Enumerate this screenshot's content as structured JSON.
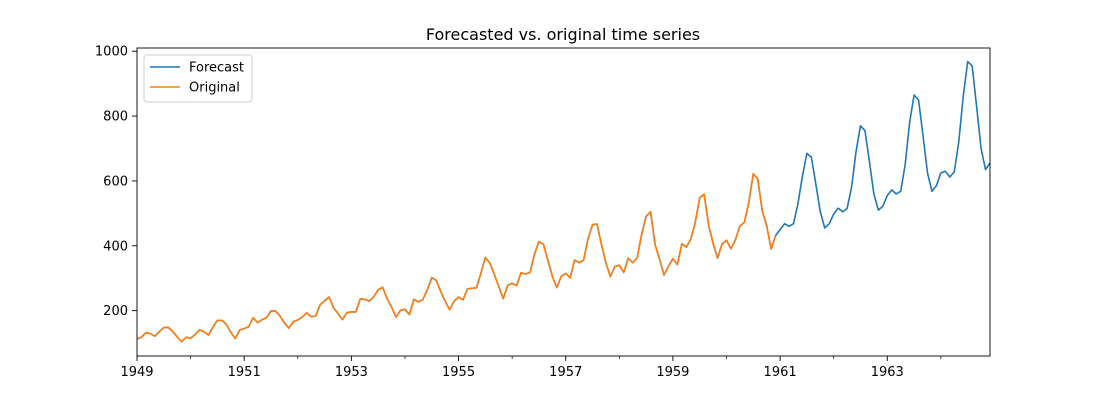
{
  "chart_data": {
    "type": "line",
    "title": "Forecasted vs. original time series",
    "xlabel": "",
    "ylabel": "",
    "x_axis": {
      "type": "date",
      "min": "1949-01",
      "max": "1964-12",
      "major_ticks": [
        "1949",
        "1951",
        "1953",
        "1955",
        "1957",
        "1959",
        "1961",
        "1963"
      ],
      "minor_ticks": [
        "1950",
        "1952",
        "1954",
        "1956",
        "1958",
        "1960",
        "1962",
        "1964"
      ]
    },
    "y_axis": {
      "min": 60,
      "max": 1010,
      "ticks": [
        200,
        400,
        600,
        800,
        1000
      ]
    },
    "grid": false,
    "legend": {
      "position": "upper-left"
    },
    "x_original": {
      "start": "1949-01",
      "frequency": "monthly",
      "end": "1960-12"
    },
    "x_forecast": {
      "start": "1949-01",
      "frequency": "monthly",
      "end": "1964-12"
    },
    "series": [
      {
        "name": "Forecast",
        "color": "#1f77b4",
        "values": [
          112,
          118,
          132,
          129,
          121,
          135,
          148,
          148,
          136,
          119,
          104,
          118,
          115,
          126,
          141,
          135,
          125,
          149,
          170,
          170,
          158,
          133,
          114,
          140,
          145,
          150,
          178,
          163,
          172,
          178,
          199,
          199,
          184,
          162,
          146,
          166,
          171,
          180,
          193,
          181,
          183,
          218,
          230,
          242,
          209,
          191,
          172,
          194,
          196,
          196,
          236,
          235,
          229,
          243,
          264,
          272,
          237,
          211,
          180,
          201,
          204,
          188,
          235,
          227,
          234,
          264,
          302,
          293,
          259,
          229,
          203,
          229,
          242,
          233,
          267,
          269,
          270,
          315,
          364,
          347,
          312,
          274,
          237,
          278,
          284,
          277,
          317,
          313,
          318,
          374,
          413,
          405,
          355,
          306,
          271,
          306,
          315,
          301,
          356,
          348,
          355,
          422,
          465,
          467,
          404,
          347,
          305,
          336,
          340,
          318,
          362,
          348,
          363,
          435,
          491,
          505,
          404,
          359,
          310,
          337,
          360,
          342,
          406,
          396,
          420,
          472,
          548,
          559,
          463,
          407,
          362,
          405,
          417,
          391,
          419,
          461,
          472,
          535,
          622,
          606,
          508,
          461,
          390,
          432,
          450,
          468,
          460,
          468,
          530,
          615,
          685,
          673,
          590,
          505,
          455,
          468,
          498,
          516,
          505,
          515,
          580,
          690,
          770,
          755,
          660,
          560,
          510,
          522,
          555,
          572,
          560,
          568,
          650,
          780,
          865,
          850,
          740,
          625,
          568,
          585,
          625,
          630,
          612,
          628,
          720,
          860,
          968,
          955,
          830,
          700,
          635,
          655
        ]
      },
      {
        "name": "Original",
        "color": "#ff7f0e",
        "values": [
          112,
          118,
          132,
          129,
          121,
          135,
          148,
          148,
          136,
          119,
          104,
          118,
          115,
          126,
          141,
          135,
          125,
          149,
          170,
          170,
          158,
          133,
          114,
          140,
          145,
          150,
          178,
          163,
          172,
          178,
          199,
          199,
          184,
          162,
          146,
          166,
          171,
          180,
          193,
          181,
          183,
          218,
          230,
          242,
          209,
          191,
          172,
          194,
          196,
          196,
          236,
          235,
          229,
          243,
          264,
          272,
          237,
          211,
          180,
          201,
          204,
          188,
          235,
          227,
          234,
          264,
          302,
          293,
          259,
          229,
          203,
          229,
          242,
          233,
          267,
          269,
          270,
          315,
          364,
          347,
          312,
          274,
          237,
          278,
          284,
          277,
          317,
          313,
          318,
          374,
          413,
          405,
          355,
          306,
          271,
          306,
          315,
          301,
          356,
          348,
          355,
          422,
          465,
          467,
          404,
          347,
          305,
          336,
          340,
          318,
          362,
          348,
          363,
          435,
          491,
          505,
          404,
          359,
          310,
          337,
          360,
          342,
          406,
          396,
          420,
          472,
          548,
          559,
          463,
          407,
          362,
          405,
          417,
          391,
          419,
          461,
          472,
          535,
          622,
          606,
          508,
          461,
          390,
          432
        ]
      }
    ]
  }
}
